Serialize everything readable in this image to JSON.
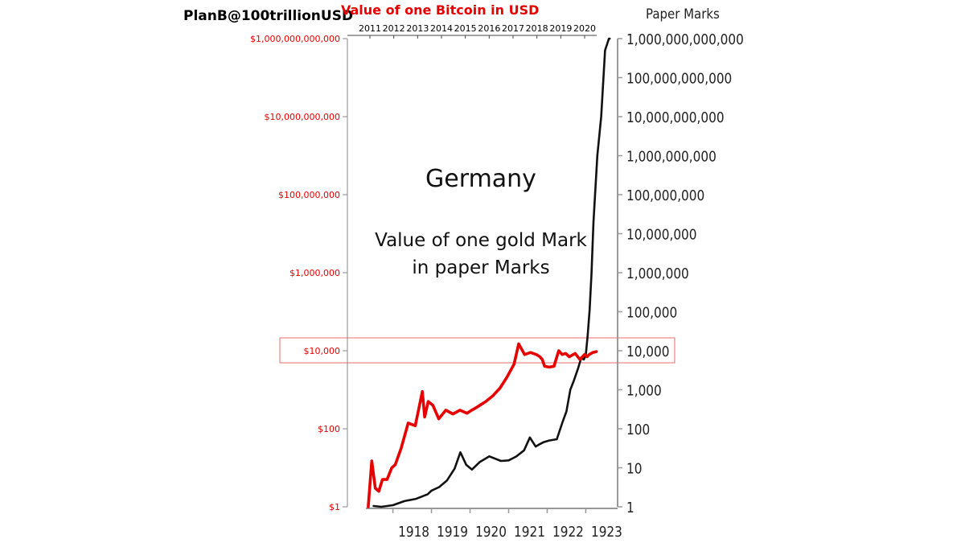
{
  "header": {
    "author": "PlanB@100trillionUSD",
    "bitcoin_title": "Value of one Bitcoin in USD",
    "right_axis_title": "Paper Marks"
  },
  "annotation": {
    "country": "Germany",
    "subtitle_line1": "Value of one gold Mark",
    "subtitle_line2": "in paper Marks"
  },
  "colors": {
    "bitcoin": "#e60000",
    "paper_mark": "#111111",
    "highlight_box": "#ee6a6a",
    "axis": "#888888"
  },
  "chart_data": {
    "type": "line",
    "log_scale": true,
    "grid": false,
    "highlight_level": 10000,
    "left_axis": {
      "ticks": [
        1,
        100,
        10000,
        1000000,
        100000000,
        10000000000,
        1000000000000
      ],
      "tick_labels": [
        "$1",
        "$100",
        "$10,000",
        "$1,000,000",
        "$100,000,000",
        "$10,000,000,000",
        "$1,000,000,000,000"
      ],
      "range": [
        1,
        1000000000000
      ]
    },
    "right_axis": {
      "ticks": [
        1,
        10,
        100,
        1000,
        10000,
        100000,
        1000000,
        10000000,
        100000000,
        1000000000,
        10000000000,
        100000000000,
        1000000000000
      ],
      "tick_labels": [
        "1",
        "10",
        "100",
        "1,000",
        "10,000",
        "100,000",
        "1,000,000",
        "10,000,000",
        "100,000,000",
        "1,000,000,000",
        "10,000,000,000",
        "100,000,000,000",
        "1,000,000,000,000"
      ],
      "range": [
        1,
        1000000000000
      ]
    },
    "top_axis": {
      "labels": [
        "2011",
        "2012",
        "2013",
        "2014",
        "2015",
        "2016",
        "2017",
        "2018",
        "2019",
        "2020"
      ],
      "range": [
        2010.5,
        2021
      ]
    },
    "bottom_axis": {
      "labels": [
        "1918",
        "1919",
        "1920",
        "1921",
        "1922",
        "1923"
      ],
      "range": [
        1917.3,
        1923.7
      ]
    },
    "series": [
      {
        "key": "paper_mark",
        "x": [
          1917.5,
          1917.7,
          1918.0,
          1918.3,
          1918.6,
          1918.9,
          1919.0,
          1919.2,
          1919.4,
          1919.6,
          1919.75,
          1919.9,
          1920.05,
          1920.25,
          1920.5,
          1920.8,
          1921.0,
          1921.2,
          1921.4,
          1921.55,
          1921.7,
          1921.8,
          1921.9,
          1922.05,
          1922.25,
          1922.4,
          1922.5,
          1922.6,
          1922.7,
          1922.8,
          1922.88,
          1922.95,
          1923.0,
          1923.05,
          1923.1,
          1923.15,
          1923.2,
          1923.3,
          1923.4,
          1923.5,
          1923.6,
          1923.62
        ],
        "y": [
          1.05,
          1.0,
          1.1,
          1.4,
          1.6,
          2.1,
          2.6,
          3.2,
          4.7,
          9.5,
          25,
          12,
          9,
          14,
          19.6,
          15,
          15.5,
          19.5,
          28,
          60,
          35,
          40,
          45,
          50,
          54,
          150,
          280,
          1000,
          1800,
          3500,
          6500,
          6000,
          7600,
          25000,
          110000,
          1000000,
          20000000,
          1000000000,
          10000000000,
          500000000000,
          1000000000000,
          1000000000000
        ]
      },
      {
        "key": "bitcoin",
        "x": [
          2010.6,
          2010.75,
          2010.9,
          2011.05,
          2011.2,
          2011.4,
          2011.6,
          2011.75,
          2012.0,
          2012.3,
          2012.6,
          2012.9,
          2013.0,
          2013.15,
          2013.35,
          2013.6,
          2013.9,
          2014.2,
          2014.5,
          2014.8,
          2015.0,
          2015.2,
          2015.4,
          2015.6,
          2015.9,
          2016.2,
          2016.5,
          2016.8,
          2017.0,
          2017.25,
          2017.5,
          2017.75,
          2017.9,
          2018.0,
          2018.1,
          2018.3,
          2018.5,
          2018.7,
          2018.85,
          2019.0,
          2019.15,
          2019.4,
          2019.6,
          2019.8,
          2019.9,
          2020.0,
          2020.15,
          2020.3
        ],
        "y": [
          1.0,
          15,
          3,
          2.5,
          5,
          5,
          10,
          12,
          32,
          140,
          120,
          900,
          200,
          500,
          400,
          180,
          300,
          240,
          300,
          250,
          300,
          350,
          420,
          500,
          700,
          1100,
          2100,
          4500,
          15000,
          8000,
          9000,
          8000,
          7000,
          6000,
          4000,
          3800,
          4000,
          10000,
          8000,
          8500,
          7000,
          8500,
          6000,
          8000,
          7000,
          8000,
          9000,
          9500
        ]
      }
    ]
  }
}
